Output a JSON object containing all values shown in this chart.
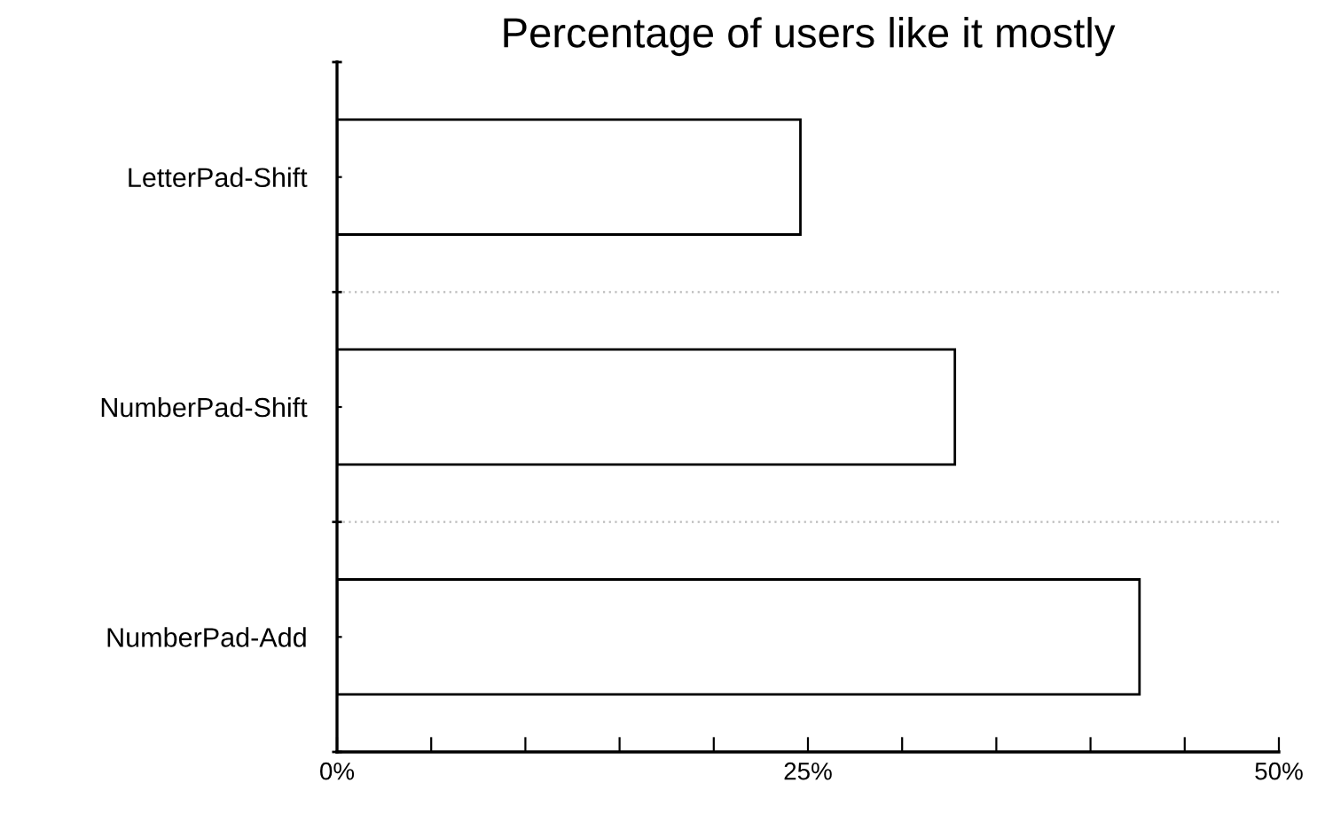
{
  "chart_data": {
    "type": "bar",
    "orientation": "horizontal",
    "title": "Percentage of users like it mostly",
    "categories": [
      "LetterPad-Shift",
      "NumberPad-Shift",
      "NumberPad-Add"
    ],
    "values": [
      24.6,
      32.8,
      42.6
    ],
    "color": "#ffffff",
    "xlim": [
      0,
      50
    ],
    "xticks": [
      {
        "value": 0,
        "label": "0%"
      },
      {
        "value": 5,
        "label": null
      },
      {
        "value": 10,
        "label": null
      },
      {
        "value": 15,
        "label": null
      },
      {
        "value": 20,
        "label": null
      },
      {
        "value": 25,
        "label": "25%"
      },
      {
        "value": 30,
        "label": null
      },
      {
        "value": 35,
        "label": null
      },
      {
        "value": 40,
        "label": null
      },
      {
        "value": 45,
        "label": null
      },
      {
        "value": 50,
        "label": "50%"
      }
    ],
    "grid": "y",
    "legend": false
  }
}
